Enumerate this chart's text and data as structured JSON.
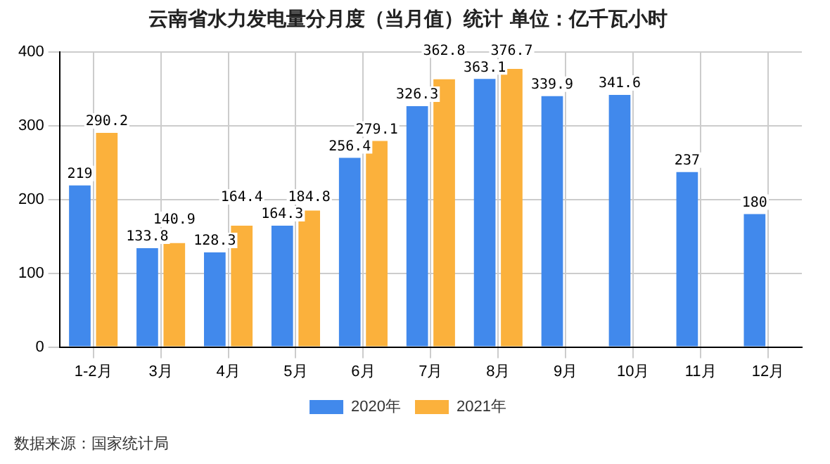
{
  "chart_data": {
    "type": "bar",
    "title": "云南省水力发电量分月度（当月值）统计 单位：亿千瓦小时",
    "categories": [
      "1-2月",
      "3月",
      "4月",
      "5月",
      "6月",
      "7月",
      "8月",
      "9月",
      "10月",
      "11月",
      "12月"
    ],
    "series": [
      {
        "name": "2020年",
        "color": "#4189ec",
        "values": [
          219,
          133.8,
          128.3,
          164.3,
          256.4,
          326.3,
          363.1,
          339.9,
          341.6,
          237,
          180
        ]
      },
      {
        "name": "2021年",
        "color": "#fbb13c",
        "values": [
          290.2,
          140.9,
          164.4,
          184.8,
          279.1,
          362.8,
          376.7,
          null,
          null,
          null,
          null
        ]
      }
    ],
    "ylim": [
      0,
      400
    ],
    "yticks": [
      0,
      100,
      200,
      300,
      400
    ],
    "grid": true,
    "legend": "bottom",
    "data_labels": true,
    "annotations": [
      "数据来源：国家统计局"
    ]
  }
}
